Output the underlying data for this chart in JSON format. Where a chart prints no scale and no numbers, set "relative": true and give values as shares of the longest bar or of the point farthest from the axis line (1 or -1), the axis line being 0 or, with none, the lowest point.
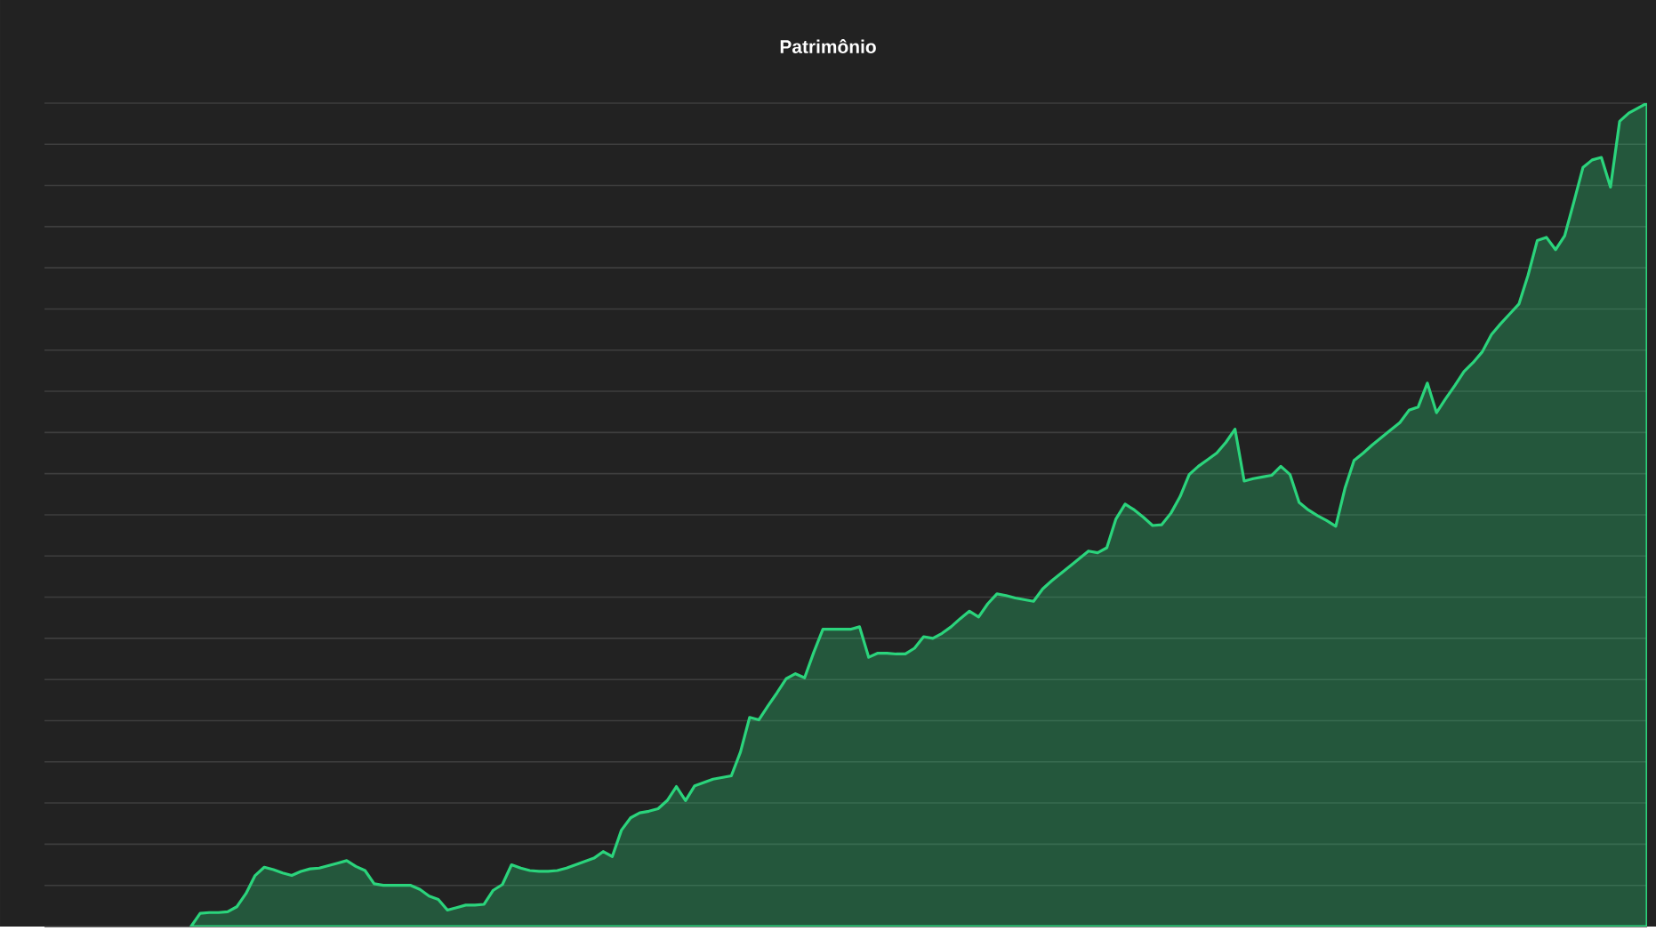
{
  "chart_data": {
    "type": "area",
    "title": "Patrimônio",
    "relative": true,
    "grid": "y",
    "categories": [
      null,
      null,
      null,
      null,
      null,
      null,
      null,
      null,
      null,
      null,
      null,
      null,
      null,
      null,
      null,
      null,
      null,
      null,
      null,
      null,
      null,
      null,
      null,
      null,
      null,
      null,
      null,
      null,
      null,
      null,
      null,
      null,
      null,
      null,
      null,
      null,
      null,
      null,
      null,
      null,
      null,
      null,
      null,
      null,
      null,
      null,
      null,
      null,
      null,
      null,
      null,
      null,
      null,
      null,
      null,
      null,
      null,
      null,
      null,
      null,
      null,
      null,
      null,
      null,
      null,
      null,
      null,
      null,
      null,
      null,
      null,
      null,
      null,
      null,
      null,
      null,
      null,
      null,
      null,
      null,
      null,
      null,
      null,
      null,
      null,
      null,
      null,
      null,
      null,
      null,
      null,
      null,
      null,
      null,
      null,
      null,
      null,
      null,
      null,
      null,
      null,
      null,
      null,
      null,
      null,
      null,
      null,
      null,
      null,
      null,
      null,
      null,
      null,
      null,
      null,
      null,
      null,
      null,
      null,
      null,
      null,
      null,
      null,
      null,
      null,
      null,
      null,
      null,
      null,
      null,
      null,
      null,
      null,
      null,
      null,
      null,
      null,
      null,
      null,
      null,
      null,
      null,
      null,
      null,
      null,
      null,
      null,
      null,
      null,
      null,
      null,
      null,
      null,
      null,
      null,
      null,
      null,
      null,
      null,
      null,
      null,
      null,
      null,
      null,
      null,
      null,
      null,
      null,
      null,
      null,
      null,
      null,
      null,
      null,
      null,
      null
    ],
    "series": [
      {
        "color": "#2bd47c",
        "values": [
          null,
          null,
          null,
          null,
          null,
          null,
          null,
          null,
          null,
          null,
          null,
          null,
          null,
          null,
          null,
          null,
          0,
          0.016,
          0.017,
          0.017,
          0.018,
          0.024,
          0.04,
          0.062,
          0.072,
          0.069,
          0.065,
          0.062,
          0.067,
          0.07,
          0.071,
          0.074,
          0.077,
          0.08,
          0.073,
          0.068,
          0.052,
          0.05,
          0.05,
          0.05,
          0.05,
          0.045,
          0.037,
          0.033,
          0.02,
          0.023,
          0.026,
          0.026,
          0.027,
          0.044,
          0.051,
          0.075,
          0.071,
          0.068,
          0.067,
          0.067,
          0.068,
          0.071,
          0.075,
          0.079,
          0.083,
          0.091,
          0.085,
          0.117,
          0.132,
          0.138,
          0.14,
          0.143,
          0.153,
          0.17,
          0.153,
          0.171,
          0.175,
          0.179,
          0.181,
          0.183,
          0.212,
          0.254,
          0.251,
          0.268,
          0.284,
          0.301,
          0.307,
          0.302,
          0.333,
          0.361,
          0.361,
          0.361,
          0.361,
          0.364,
          0.327,
          0.332,
          0.332,
          0.331,
          0.331,
          0.338,
          0.352,
          0.35,
          0.356,
          0.364,
          0.374,
          0.383,
          0.376,
          0.392,
          0.404,
          0.402,
          0.399,
          0.397,
          0.395,
          0.41,
          0.42,
          0.429,
          0.438,
          0.447,
          0.456,
          0.454,
          0.46,
          0.495,
          0.513,
          0.506,
          0.497,
          0.487,
          0.488,
          0.502,
          0.522,
          0.549,
          0.559,
          0.567,
          0.575,
          0.588,
          0.604,
          0.541,
          0.544,
          0.546,
          0.548,
          0.559,
          0.549,
          0.515,
          0.506,
          0.499,
          0.493,
          0.486,
          0.532,
          0.566,
          0.575,
          0.585,
          0.594,
          0.603,
          0.612,
          0.627,
          0.631,
          0.66,
          0.624,
          0.641,
          0.657,
          0.674,
          0.685,
          0.698,
          0.719,
          0.732,
          0.744,
          0.756,
          0.791,
          0.833,
          0.837,
          0.822,
          0.839,
          0.88,
          0.922,
          0.931,
          0.934,
          0.898,
          0.978,
          0.988,
          0.994,
          1
        ]
      }
    ]
  }
}
